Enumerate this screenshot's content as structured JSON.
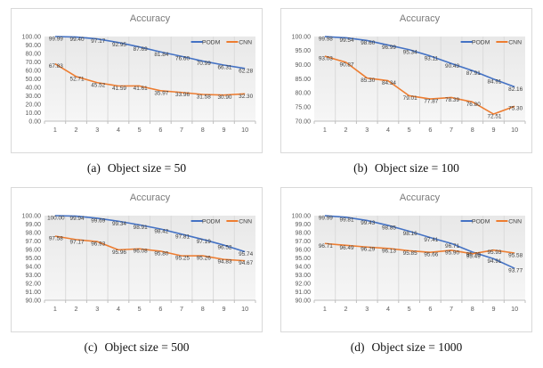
{
  "palette": {
    "PODM": "#4472C4",
    "CNN": "#ED7D31"
  },
  "style": {
    "title_color": "#7a7a7a",
    "axis_label_color": "#595959",
    "data_label_color": "#3f3f3f",
    "gridline_color": "#dadada",
    "axis_line_color": "#bfbfbf",
    "plot_fill_top": "#e8e8e8",
    "plot_fill_bottom": "#f6f6f6"
  },
  "chart_data": [
    {
      "type": "line",
      "title": "Accuracy",
      "caption_label": "(a)",
      "caption_text": "Object size = 50",
      "categories": [
        "1",
        "2",
        "3",
        "4",
        "5",
        "6",
        "7",
        "8",
        "9",
        "10"
      ],
      "series": [
        {
          "name": "PODM",
          "values": [
            99.99,
            99.4,
            97.17,
            92.95,
            87.69,
            81.84,
            76.6,
            70.99,
            66.31,
            62.28
          ]
        },
        {
          "name": "CNN",
          "values": [
            67.83,
            52.71,
            45.52,
            41.59,
            41.61,
            35.97,
            33.96,
            31.58,
            30.9,
            32.3
          ]
        }
      ],
      "ylim": [
        0,
        100
      ],
      "ytick_step": 10,
      "grid": "vertical",
      "legend_position": "top-right"
    },
    {
      "type": "line",
      "title": "Accuracy",
      "caption_label": "(b)",
      "caption_text": "Object size = 100",
      "categories": [
        "1",
        "2",
        "3",
        "4",
        "5",
        "6",
        "7",
        "8",
        "9",
        "10"
      ],
      "series": [
        {
          "name": "PODM",
          "values": [
            99.98,
            99.54,
            98.6,
            96.99,
            95.34,
            93.11,
            90.43,
            87.91,
            84.91,
            82.16
          ]
        },
        {
          "name": "CNN",
          "values": [
            93.03,
            90.87,
            85.3,
            84.34,
            79.01,
            77.87,
            78.39,
            76.8,
            72.51,
            75.3
          ]
        }
      ],
      "ylim": [
        70,
        100
      ],
      "ytick_step": 5,
      "grid": "vertical",
      "legend_position": "top-right"
    },
    {
      "type": "line",
      "title": "Accuracy",
      "caption_label": "(c)",
      "caption_text": "Object size = 500",
      "categories": [
        "1",
        "2",
        "3",
        "4",
        "5",
        "6",
        "7",
        "8",
        "9",
        "10"
      ],
      "series": [
        {
          "name": "PODM",
          "values": [
            100.0,
            99.94,
            99.69,
            99.34,
            98.91,
            98.42,
            97.81,
            97.19,
            96.52,
            95.74
          ]
        },
        {
          "name": "CNN",
          "values": [
            97.58,
            97.17,
            96.93,
            95.96,
            96.08,
            95.8,
            95.25,
            95.26,
            94.83,
            94.67
          ]
        }
      ],
      "ylim": [
        90,
        100
      ],
      "ytick_step": 1,
      "grid": "vertical",
      "legend_position": "top-right"
    },
    {
      "type": "line",
      "title": "Accuracy",
      "caption_label": "(d)",
      "caption_text": "Object size = 1000",
      "categories": [
        "1",
        "2",
        "3",
        "4",
        "5",
        "6",
        "7",
        "8",
        "9",
        "10"
      ],
      "series": [
        {
          "name": "PODM",
          "values": [
            99.99,
            99.81,
            99.43,
            98.85,
            98.16,
            97.41,
            96.71,
            95.7,
            94.91,
            93.77
          ]
        },
        {
          "name": "CNN",
          "values": [
            96.71,
            96.49,
            96.29,
            96.13,
            95.85,
            95.66,
            95.9,
            95.49,
            95.93,
            95.58
          ]
        }
      ],
      "ylim": [
        90,
        100
      ],
      "ytick_step": 1,
      "grid": "vertical",
      "legend_position": "top-right"
    }
  ]
}
